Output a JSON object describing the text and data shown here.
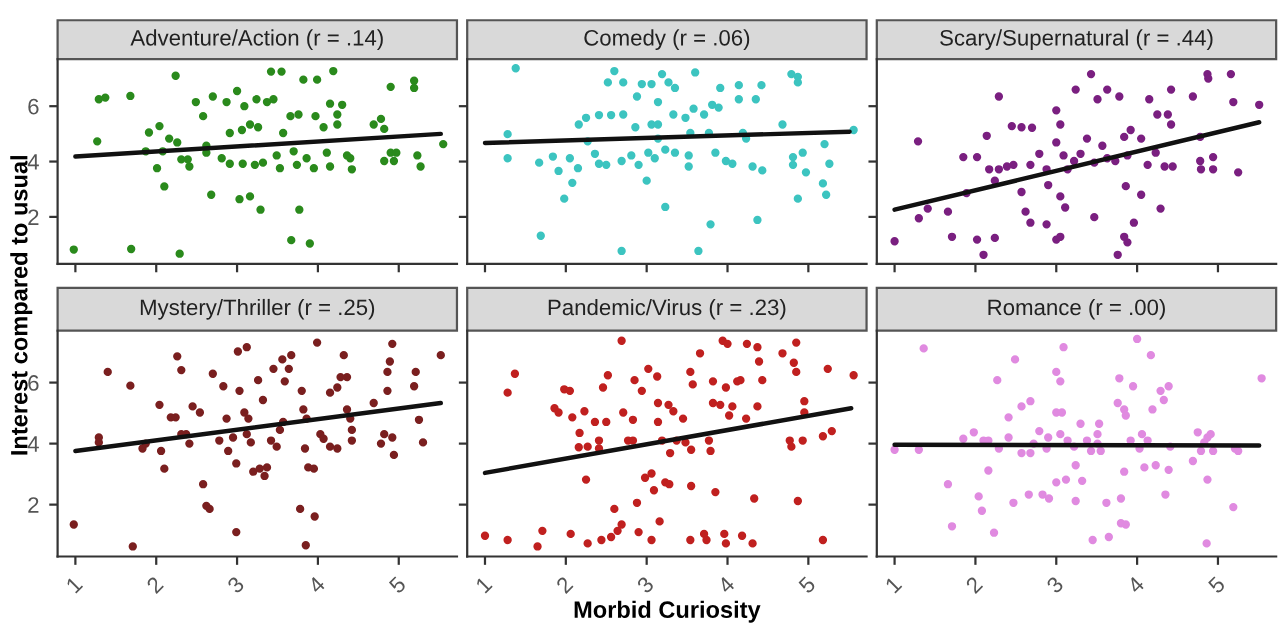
{
  "chart_data": [
    {
      "type": "scatter",
      "title": "Adventure/Action (r = .14)",
      "ylabel": "Interest compared to usual",
      "xlim": [
        0.78,
        5.72
      ],
      "ylim": [
        0.3,
        7.7
      ],
      "xticks": [
        1,
        2,
        3,
        4,
        5
      ],
      "yticks": [
        2,
        4,
        6
      ],
      "tick_labels": "y",
      "grid": false,
      "marker": "circle",
      "series": [
        {
          "color": "#2a8a1c",
          "x": [
            0.98,
            1.69,
            2.29,
            1.29,
            1.37,
            1.68,
            1.27,
            2.24,
            1.91,
            2.04,
            1.87,
            2.08,
            2.01,
            2.1,
            2.16,
            2.26,
            2.31,
            2.41,
            2.39,
            2.49,
            2.7,
            2.58,
            2.62,
            2.62,
            2.68,
            2.81,
            2.91,
            2.87,
            3.0,
            3.09,
            2.91,
            3.03,
            3.16,
            3.06,
            3.16,
            3.26,
            3.07,
            3.22,
            3.32,
            3.29,
            3.24,
            3.37,
            3.45,
            3.42,
            3.55,
            3.49,
            3.53,
            3.57,
            3.66,
            3.76,
            3.7,
            3.74,
            3.67,
            3.77,
            3.9,
            3.82,
            3.99,
            3.86,
            3.95,
            3.97,
            4.07,
            4.11,
            4.15,
            4.19,
            4.15,
            4.3,
            4.24,
            4.24,
            4.36,
            4.42,
            4.4,
            4.69,
            4.78,
            4.82,
            4.82,
            4.94,
            4.9,
            4.97,
            4.9,
            5.19,
            5.19,
            5.23,
            5.27,
            5.55
          ],
          "values": [
            0.82,
            0.84,
            0.67,
            6.25,
            6.31,
            6.37,
            4.73,
            7.1,
            5.05,
            5.28,
            4.37,
            4.37,
            3.76,
            3.1,
            4.83,
            4.69,
            4.08,
            3.82,
            4.08,
            6.15,
            6.35,
            5.64,
            4.57,
            4.32,
            2.8,
            4.12,
            3.92,
            6.15,
            6.55,
            6.0,
            5.03,
            2.64,
            2.74,
            5.14,
            5.34,
            5.24,
            3.92,
            3.88,
            3.96,
            2.26,
            6.25,
            6.15,
            6.25,
            7.25,
            7.25,
            4.22,
            3.76,
            5.03,
            5.64,
            5.7,
            4.37,
            3.88,
            1.16,
            2.26,
            1.04,
            6.96,
            6.96,
            4.12,
            3.76,
            5.64,
            5.24,
            4.32,
            3.82,
            7.27,
            6.09,
            6.05,
            5.34,
            5.7,
            4.22,
            3.72,
            4.12,
            5.34,
            5.54,
            5.18,
            4.02,
            4.02,
            4.32,
            4.32,
            6.7,
            6.92,
            6.66,
            4.22,
            3.82,
            4.63
          ]
        },
        {
          "type": "line",
          "marker": "none",
          "color": "#111111",
          "x": [
            1.0,
            5.52
          ],
          "values": [
            4.18,
            5.0
          ]
        }
      ]
    },
    {
      "type": "scatter",
      "title": "Comedy (r = .06)",
      "xlim": [
        0.78,
        5.72
      ],
      "ylim": [
        0.3,
        7.7
      ],
      "xticks": [
        1,
        2,
        3,
        4,
        5
      ],
      "yticks": [
        2,
        4,
        6
      ],
      "tick_labels": false,
      "grid": false,
      "marker": "circle",
      "series": [
        {
          "color": "#3cc4c0",
          "x": [
            1.38,
            1.28,
            1.28,
            1.69,
            1.67,
            1.84,
            1.91,
            1.98,
            2.08,
            2.05,
            2.15,
            2.16,
            2.25,
            2.41,
            2.56,
            2.71,
            2.27,
            2.36,
            2.41,
            2.5,
            2.6,
            2.52,
            2.71,
            2.69,
            2.69,
            2.81,
            2.9,
            2.88,
            2.94,
            3.06,
            2.86,
            3.06,
            3.14,
            3.0,
            3.14,
            3.14,
            3.02,
            3.1,
            3.23,
            3.19,
            3.27,
            3.35,
            3.23,
            3.33,
            3.48,
            3.35,
            3.52,
            3.52,
            3.6,
            3.54,
            3.58,
            3.71,
            3.64,
            3.79,
            3.77,
            3.85,
            3.81,
            3.89,
            3.91,
            3.98,
            4.06,
            4.14,
            4.14,
            4.35,
            4.23,
            4.19,
            4.31,
            4.43,
            4.42,
            4.37,
            4.68,
            4.79,
            4.87,
            4.87,
            4.81,
            4.81,
            4.93,
            4.97,
            4.87,
            5.18,
            5.22,
            5.2,
            5.26,
            5.56
          ],
          "values": [
            7.37,
            4.99,
            4.12,
            1.32,
            3.96,
            4.18,
            3.66,
            2.66,
            3.23,
            4.12,
            3.76,
            5.34,
            5.58,
            5.68,
            5.68,
            5.7,
            4.73,
            4.28,
            3.92,
            3.88,
            7.27,
            6.86,
            6.86,
            0.77,
            4.02,
            4.22,
            3.88,
            6.35,
            6.8,
            6.8,
            5.24,
            5.34,
            6.15,
            3.31,
            5.34,
            4.83,
            4.32,
            4.12,
            4.43,
            7.16,
            6.86,
            6.66,
            2.36,
            5.7,
            5.58,
            4.32,
            4.22,
            3.82,
            7.22,
            5.03,
            5.91,
            5.7,
            0.77,
            1.73,
            5.03,
            4.32,
            6.05,
            5.95,
            6.66,
            4.02,
            3.92,
            6.76,
            6.25,
            6.25,
            4.83,
            5.03,
            3.82,
            3.68,
            6.76,
            1.89,
            5.34,
            7.16,
            7.06,
            6.86,
            4.16,
            3.88,
            4.32,
            3.61,
            2.66,
            3.21,
            2.8,
            4.63,
            3.92,
            5.14
          ]
        },
        {
          "type": "line",
          "marker": "none",
          "color": "#111111",
          "x": [
            1.0,
            5.51
          ],
          "values": [
            4.67,
            5.08
          ]
        }
      ]
    },
    {
      "type": "scatter",
      "title": "Scary/Supernatural (r = .44)",
      "xlim": [
        0.78,
        5.72
      ],
      "ylim": [
        0.3,
        7.7
      ],
      "xticks": [
        1,
        2,
        3,
        4,
        5
      ],
      "yticks": [
        2,
        4,
        6
      ],
      "tick_labels": false,
      "grid": false,
      "marker": "circle",
      "series": [
        {
          "color": "#7a1f80",
          "x": [
            1.0,
            1.29,
            1.3,
            1.41,
            1.66,
            1.71,
            1.89,
            1.85,
            2.02,
            2.02,
            2.1,
            2.24,
            2.14,
            2.17,
            2.24,
            2.29,
            2.29,
            2.39,
            2.47,
            2.45,
            2.57,
            2.7,
            2.57,
            2.62,
            2.68,
            2.68,
            2.79,
            2.88,
            2.88,
            3.0,
            3.05,
            2.9,
            3.05,
            3.11,
            3.0,
            3.05,
            3.0,
            3.09,
            3.14,
            3.22,
            3.24,
            3.43,
            3.3,
            3.38,
            3.47,
            3.51,
            3.63,
            3.47,
            3.57,
            3.63,
            3.73,
            3.78,
            3.76,
            3.84,
            3.88,
            3.92,
            3.86,
            3.84,
            3.96,
            3.88,
            4.05,
            4.05,
            4.15,
            4.25,
            4.38,
            4.42,
            4.13,
            4.23,
            4.34,
            4.44,
            4.29,
            4.42,
            4.69,
            4.78,
            4.78,
            4.79,
            4.94,
            4.94,
            4.87,
            4.88,
            5.16,
            5.19,
            5.25,
            5.51
          ],
          "values": [
            1.12,
            4.73,
            1.95,
            2.3,
            2.19,
            1.28,
            2.86,
            4.16,
            4.16,
            1.18,
            0.63,
            1.24,
            4.93,
            3.72,
            3.31,
            6.35,
            3.72,
            3.82,
            3.88,
            5.28,
            5.24,
            5.22,
            2.9,
            2.19,
            1.79,
            3.88,
            4.28,
            3.72,
            1.73,
            1.18,
            1.28,
            3.15,
            2.74,
            2.34,
            5.85,
            5.34,
            4.69,
            4.22,
            3.72,
            4.02,
            6.6,
            7.16,
            4.28,
            4.83,
            3.96,
            6.25,
            6.6,
            1.99,
            4.57,
            4.12,
            4.02,
            6.35,
            0.63,
            4.89,
            4.22,
            5.14,
            3.11,
            1.28,
            1.79,
            1.08,
            2.8,
            4.83,
            6.25,
            5.7,
            5.7,
            5.34,
            3.88,
            4.32,
            3.82,
            3.82,
            2.3,
            6.6,
            6.35,
            4.89,
            4.02,
            3.72,
            4.16,
            3.72,
            7.16,
            7.0,
            7.16,
            6.15,
            3.61,
            6.05
          ]
        },
        {
          "type": "line",
          "marker": "none",
          "color": "#111111",
          "x": [
            1.0,
            5.51
          ],
          "values": [
            2.26,
            5.42
          ]
        }
      ]
    },
    {
      "type": "scatter",
      "title": "Mystery/Thriller (r = .25)",
      "xlim": [
        0.78,
        5.72
      ],
      "ylim": [
        0.3,
        7.7
      ],
      "xticks": [
        1,
        2,
        3,
        4,
        5
      ],
      "yticks": [
        2,
        4,
        6
      ],
      "grid": false,
      "marker": "circle",
      "series": [
        {
          "color": "#7a1f1f",
          "x": [
            0.98,
            1.29,
            1.29,
            1.4,
            1.68,
            1.71,
            1.83,
            1.87,
            2.04,
            2.06,
            2.1,
            2.18,
            2.24,
            2.26,
            2.31,
            2.31,
            2.41,
            2.37,
            2.45,
            2.54,
            2.58,
            2.62,
            2.66,
            2.7,
            2.83,
            2.87,
            2.78,
            2.89,
            2.95,
            2.99,
            2.99,
            3.01,
            3.12,
            3.03,
            3.09,
            3.14,
            3.12,
            3.17,
            3.2,
            3.28,
            3.34,
            3.37,
            3.26,
            3.32,
            3.45,
            3.56,
            3.42,
            3.49,
            3.53,
            3.57,
            3.59,
            3.64,
            3.67,
            3.8,
            3.82,
            3.86,
            3.84,
            3.88,
            3.95,
            3.78,
            3.85,
            3.96,
            3.99,
            4.03,
            4.07,
            4.15,
            4.15,
            4.24,
            4.28,
            4.24,
            4.32,
            4.36,
            4.36,
            4.4,
            4.42,
            4.42,
            4.69,
            4.78,
            4.82,
            4.86,
            4.89,
            4.92,
            4.86,
            4.92,
            4.94,
            5.19,
            5.21,
            5.25,
            5.3,
            5.52
          ],
          "values": [
            1.35,
            4.2,
            4.04,
            6.35,
            5.9,
            0.63,
            3.84,
            4.0,
            5.27,
            3.76,
            3.18,
            4.86,
            4.86,
            6.86,
            6.41,
            4.31,
            4.0,
            4.31,
            5.22,
            5.02,
            2.67,
            1.96,
            1.86,
            6.29,
            5.88,
            4.82,
            4.1,
            3.76,
            4.2,
            1.1,
            3.35,
            7.02,
            7.16,
            5.73,
            5.02,
            4.82,
            4.31,
            4.04,
            3.08,
            3.18,
            2.94,
            3.22,
            6.08,
            5.43,
            6.45,
            6.76,
            4.1,
            3.9,
            4.45,
            4.71,
            6.04,
            6.45,
            6.9,
            5.73,
            5.12,
            4.82,
            3.84,
            3.22,
            3.18,
            1.86,
            0.67,
            1.61,
            7.31,
            4.31,
            4.16,
            3.9,
            5.67,
            5.84,
            6.18,
            3.84,
            6.9,
            6.18,
            5.12,
            4.82,
            4.45,
            4.1,
            5.33,
            4.0,
            4.31,
            6.35,
            6.69,
            7.27,
            5.73,
            4.2,
            3.63,
            5.88,
            6.35,
            4.78,
            4.04,
            6.9
          ]
        },
        {
          "type": "line",
          "marker": "none",
          "color": "#111111",
          "x": [
            1.0,
            5.52
          ],
          "values": [
            3.76,
            5.33
          ]
        }
      ]
    },
    {
      "type": "scatter",
      "title": "Pandemic/Virus (r = .23)",
      "xlabel": "Morbid Curiosity",
      "xlim": [
        0.78,
        5.72
      ],
      "ylim": [
        0.3,
        7.7
      ],
      "xticks": [
        1,
        2,
        3,
        4,
        5
      ],
      "yticks": [
        2,
        4,
        6
      ],
      "tick_labels": "x",
      "grid": false,
      "marker": "circle",
      "series": [
        {
          "color": "#c0201f",
          "x": [
            1.0,
            1.28,
            1.37,
            1.28,
            1.65,
            1.71,
            1.86,
            1.91,
            1.98,
            2.05,
            2.06,
            2.08,
            2.17,
            2.16,
            2.23,
            2.27,
            2.25,
            2.27,
            2.36,
            2.41,
            2.41,
            2.46,
            2.44,
            2.52,
            2.5,
            2.6,
            2.56,
            2.64,
            2.69,
            2.69,
            2.71,
            2.77,
            2.83,
            2.85,
            2.83,
            2.88,
            2.9,
            2.94,
            2.98,
            3.02,
            3.06,
            3.09,
            3.13,
            3.14,
            3.14,
            3.16,
            3.06,
            3.19,
            3.23,
            3.28,
            3.27,
            3.33,
            3.29,
            3.37,
            3.45,
            3.48,
            3.54,
            3.57,
            3.55,
            3.55,
            3.54,
            3.66,
            3.71,
            3.74,
            3.77,
            3.79,
            3.82,
            3.82,
            3.85,
            3.91,
            3.94,
            4.0,
            3.98,
            3.98,
            3.96,
            4.02,
            4.06,
            4.12,
            4.16,
            4.18,
            4.23,
            4.24,
            4.31,
            4.33,
            4.37,
            4.39,
            4.43,
            4.37,
            4.68,
            4.77,
            4.79,
            4.82,
            4.85,
            4.85,
            4.87,
            4.93,
            4.95,
            4.95,
            5.18,
            5.24,
            5.18,
            5.29,
            5.56
          ],
          "values": [
            0.98,
            5.67,
            6.29,
            0.84,
            0.63,
            1.14,
            5.16,
            5.02,
            5.78,
            5.73,
            1.04,
            4.86,
            4.35,
            3.88,
            5.06,
            3.9,
            2.82,
            0.73,
            4.71,
            4.1,
            3.84,
            5.84,
            0.84,
            6.24,
            4.71,
            1.86,
            0.94,
            1.14,
            1.35,
            7.37,
            5.02,
            4.1,
            4.78,
            6.08,
            4.1,
            2.06,
            1.1,
            5.73,
            2.88,
            6.45,
            3.02,
            2.47,
            6.2,
            4.71,
            5.33,
            1.45,
            0.84,
            4.1,
            2.73,
            2.67,
            5.27,
            5.06,
            3.69,
            4.1,
            4.82,
            4.04,
            6.35,
            5.94,
            3.8,
            2.61,
            0.84,
            6.96,
            1.04,
            0.84,
            4.1,
            3.76,
            6.04,
            5.33,
            2.41,
            5.27,
            7.37,
            7.27,
            5.84,
            0.73,
            1.04,
            4.92,
            5.22,
            6.04,
            6.08,
            0.98,
            4.82,
            7.27,
            0.73,
            2.2,
            7.16,
            6.69,
            6.08,
            5.22,
            6.96,
            4.1,
            3.9,
            6.65,
            7.31,
            6.35,
            2.12,
            4.1,
            5.39,
            5.02,
            4.24,
            6.45,
            0.84,
            4.41,
            6.24
          ]
        },
        {
          "type": "line",
          "marker": "none",
          "color": "#111111",
          "x": [
            1.0,
            5.53
          ],
          "values": [
            3.04,
            5.16
          ]
        }
      ]
    },
    {
      "type": "scatter",
      "title": "Romance (r = .00)",
      "xlim": [
        0.78,
        5.72
      ],
      "ylim": [
        0.3,
        7.7
      ],
      "xticks": [
        1,
        2,
        3,
        4,
        5
      ],
      "yticks": [
        2,
        4,
        6
      ],
      "tick_labels": "x",
      "grid": false,
      "marker": "circle",
      "series": [
        {
          "color": "#e08ae0",
          "x": [
            1.0,
            1.3,
            1.36,
            1.66,
            1.71,
            1.85,
            1.98,
            2.04,
            2.08,
            2.1,
            2.16,
            2.16,
            2.23,
            2.27,
            2.29,
            2.41,
            2.41,
            2.47,
            2.49,
            2.57,
            2.57,
            2.68,
            2.66,
            2.68,
            2.72,
            2.79,
            2.83,
            2.9,
            2.91,
            2.88,
            3.0,
            3.05,
            3.0,
            3.07,
            3.0,
            3.09,
            3.05,
            3.14,
            3.12,
            3.22,
            3.24,
            3.24,
            3.3,
            3.32,
            3.38,
            3.43,
            3.45,
            3.51,
            3.51,
            3.53,
            3.55,
            3.62,
            3.65,
            3.76,
            3.78,
            3.84,
            3.86,
            3.84,
            3.8,
            3.8,
            3.86,
            3.92,
            3.95,
            4.0,
            4.03,
            4.06,
            4.09,
            4.13,
            4.17,
            4.19,
            4.23,
            4.29,
            4.33,
            4.35,
            4.39,
            4.41,
            4.39,
            4.69,
            4.75,
            4.79,
            4.83,
            4.87,
            4.87,
            4.91,
            4.94,
            4.86,
            5.19,
            5.21,
            5.25,
            5.54
          ],
          "values": [
            3.8,
            3.8,
            7.12,
            2.67,
            1.29,
            4.16,
            4.37,
            2.27,
            1.8,
            4.1,
            4.1,
            3.12,
            1.08,
            6.08,
            3.84,
            4.86,
            4.2,
            2.06,
            6.76,
            5.22,
            3.69,
            5.39,
            2.33,
            3.69,
            4.0,
            4.41,
            2.33,
            4.2,
            2.2,
            3.84,
            6.35,
            6.04,
            5.02,
            5.02,
            2.73,
            7.16,
            4.31,
            4.1,
            2.82,
            3.9,
            3.29,
            2.12,
            4.65,
            2.78,
            4.1,
            3.76,
            0.84,
            4.31,
            4.0,
            4.65,
            3.76,
            2.06,
            0.94,
            5.33,
            6.14,
            5.12,
            4.92,
            3.08,
            2.2,
            1.39,
            1.35,
            4.1,
            5.88,
            7.43,
            3.84,
            4.31,
            3.22,
            4.1,
            6.9,
            5.12,
            3.29,
            5.73,
            5.43,
            2.33,
            5.88,
            3.9,
            3.14,
            3.43,
            4.37,
            3.76,
            4.04,
            4.2,
            2.82,
            4.31,
            3.76,
            0.73,
            1.92,
            3.84,
            3.76,
            6.14
          ]
        },
        {
          "type": "line",
          "marker": "none",
          "color": "#111111",
          "x": [
            1.0,
            5.51
          ],
          "values": [
            3.96,
            3.94
          ]
        }
      ]
    }
  ]
}
